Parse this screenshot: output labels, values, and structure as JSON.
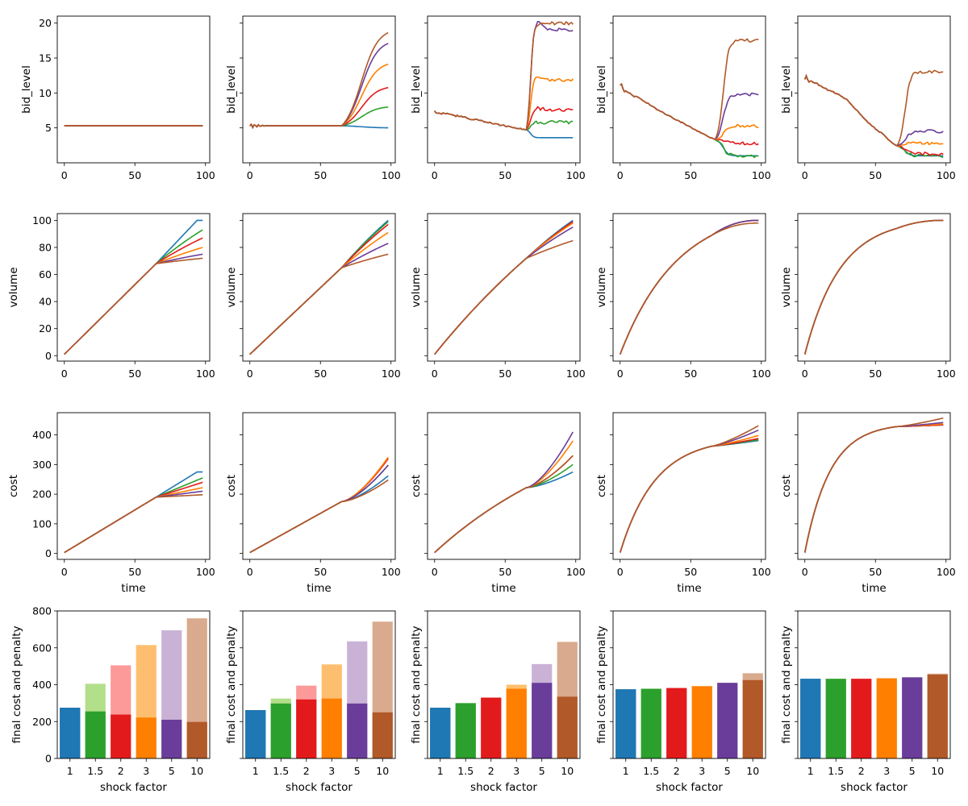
{
  "colors": {
    "series": [
      "#1f77b4",
      "#2ca02c",
      "#e31a1c",
      "#ff7f00",
      "#6a3d9a",
      "#b15928"
    ],
    "penalty": [
      "#1f77b4",
      "#b2df8a",
      "#fb9a99",
      "#fdbf6f",
      "#cab2d6",
      "#d9aa8d"
    ]
  },
  "labels": {
    "bid": "bid_level",
    "volume": "volume",
    "cost": "cost",
    "final": "final cost and penalty",
    "time": "time",
    "shock": "shock factor"
  },
  "chart_data": {
    "type": "line",
    "layout": "4 rows x 5 columns, rows share y-axis",
    "shock_factors": [
      "1",
      "1.5",
      "2",
      "3",
      "5",
      "10"
    ],
    "x_ticks": [
      "0",
      "50",
      "100"
    ],
    "rows": [
      {
        "key": "bid_level",
        "ylim": [
          0,
          21
        ],
        "yticks": [
          "5",
          "10",
          "15",
          "20"
        ]
      },
      {
        "key": "volume",
        "ylim": [
          -4,
          105
        ],
        "yticks": [
          "0",
          "20",
          "40",
          "60",
          "80",
          "100"
        ]
      },
      {
        "key": "cost",
        "ylim": [
          -20,
          475
        ],
        "yticks": [
          "0",
          "100",
          "200",
          "300",
          "400"
        ]
      },
      {
        "key": "final",
        "type": "bar",
        "ylim": [
          0,
          800
        ],
        "yticks": [
          "0",
          "200",
          "400",
          "600",
          "800"
        ]
      }
    ],
    "columns": [
      {
        "bid": {
          "base": "flat",
          "start": 5.3,
          "jump_t": 64,
          "ends": [
            5.3,
            5.3,
            5.3,
            5.3,
            5.3,
            5.3
          ]
        },
        "volume": {
          "pre_end": 68,
          "ends": [
            100,
            93,
            87,
            80,
            75,
            72
          ]
        },
        "cost": {
          "pre_end": 190,
          "ends": [
            275,
            255,
            240,
            222,
            210,
            198
          ]
        },
        "final": {
          "cost": [
            275,
            255,
            238,
            222,
            210,
            198
          ],
          "total": [
            275,
            405,
            505,
            615,
            695,
            760
          ]
        }
      },
      {
        "bid": {
          "base": "flat",
          "start": 5.3,
          "jump_t": 65,
          "ends": [
            5.0,
            8.1,
            11.0,
            14.5,
            17.6,
            19.2
          ]
        },
        "volume": {
          "pre_end": 65,
          "ends": [
            100,
            99,
            97,
            91,
            83,
            75
          ]
        },
        "cost": {
          "pre_end": 175,
          "ends": [
            262,
            298,
            320,
            325,
            298,
            248
          ]
        },
        "final": {
          "cost": [
            262,
            298,
            320,
            325,
            298,
            250
          ],
          "total": [
            262,
            325,
            395,
            510,
            635,
            742
          ]
        }
      },
      {
        "bid": {
          "base": "declining",
          "start": 7.3,
          "pre_end": 4.7,
          "jump_t": 65,
          "ends": [
            3.6,
            5.8,
            7.6,
            11.9,
            19.1,
            20.0
          ]
        },
        "volume": {
          "pre_end": 72,
          "ends": [
            100,
            99,
            99,
            98,
            95,
            85
          ]
        },
        "cost": {
          "pre_end": 222,
          "ends": [
            275,
            300,
            330,
            380,
            410,
            330
          ]
        },
        "final": {
          "cost": [
            275,
            300,
            330,
            378,
            410,
            335
          ],
          "total": [
            275,
            300,
            330,
            400,
            512,
            632
          ]
        }
      },
      {
        "bid": {
          "base": "declining",
          "start": 11.0,
          "pre_end": 3.3,
          "jump_t": 67,
          "ends": [
            1.0,
            1.0,
            2.8,
            5.3,
            9.8,
            17.5
          ]
        },
        "volume": {
          "pre_end": 89,
          "ends": [
            100,
            100,
            100,
            100,
            100,
            98
          ]
        },
        "cost": {
          "pre_end": 362,
          "ends": [
            375,
            378,
            382,
            392,
            410,
            425
          ]
        },
        "final": {
          "cost": [
            375,
            378,
            382,
            392,
            410,
            425
          ],
          "total": [
            375,
            378,
            382,
            392,
            410,
            462
          ]
        }
      },
      {
        "bid": {
          "base": "declining",
          "start": 12.0,
          "pre_end": 2.4,
          "jump_t": 65,
          "ends": [
            1.0,
            1.0,
            1.3,
            2.8,
            4.5,
            13.0
          ]
        },
        "volume": {
          "pre_end": 94,
          "ends": [
            100,
            100,
            100,
            100,
            100,
            100
          ]
        },
        "cost": {
          "pre_end": 428,
          "ends": [
            432,
            432,
            432,
            435,
            440,
            455
          ]
        },
        "final": {
          "cost": [
            432,
            432,
            432,
            435,
            440,
            455
          ],
          "total": [
            432,
            432,
            432,
            435,
            440,
            460
          ]
        }
      }
    ]
  }
}
